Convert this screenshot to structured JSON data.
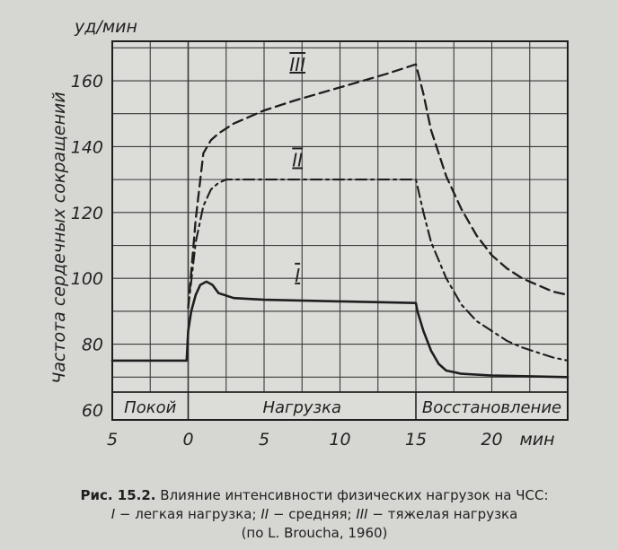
{
  "chart_data": {
    "type": "line",
    "xlabel": "мин",
    "ylabel": "Частота сердечных сокращений",
    "y_unit": "уд/мин",
    "xlim": [
      -5,
      25
    ],
    "ylim": [
      57,
      172
    ],
    "x_ticks": [
      -5,
      0,
      5,
      10,
      15,
      20
    ],
    "x_tick_labels": [
      "5",
      "0",
      "5",
      "10",
      "15",
      "20"
    ],
    "y_ticks": [
      60,
      80,
      100,
      120,
      140,
      160
    ],
    "grid": true,
    "phases": [
      {
        "label": "Покой",
        "from": -5,
        "to": 0
      },
      {
        "label": "Нагрузка",
        "from": 0,
        "to": 15
      },
      {
        "label": "Восстановление",
        "from": 15,
        "to": 25
      }
    ],
    "series": [
      {
        "name": "I",
        "style": "solid",
        "x": [
          -5,
          -0.1,
          0,
          0.2,
          0.5,
          0.8,
          1.2,
          1.6,
          2,
          3,
          5,
          10,
          15,
          15.1,
          15.5,
          16,
          16.5,
          17,
          18,
          20,
          25
        ],
        "y": [
          75,
          75,
          84,
          90,
          95,
          98,
          99,
          98,
          95.5,
          94,
          93.5,
          93,
          92.5,
          90,
          84,
          78,
          74,
          72,
          71,
          70.5,
          70
        ]
      },
      {
        "name": "II",
        "style": "dash-dot",
        "x": [
          0,
          0.5,
          1,
          1.5,
          2,
          2.5,
          3,
          5,
          10,
          15,
          15.5,
          16,
          17,
          18,
          19,
          20,
          21,
          22,
          23,
          24,
          25
        ],
        "y": [
          91,
          111,
          122,
          127,
          129,
          130,
          130,
          130,
          130,
          130,
          120,
          111,
          100,
          92,
          87,
          84,
          81,
          79,
          77.5,
          76,
          75
        ]
      },
      {
        "name": "III",
        "style": "dashed",
        "x": [
          0,
          0.5,
          1,
          1.5,
          2,
          3,
          5,
          7,
          10,
          13,
          15,
          15.5,
          16,
          17,
          18,
          19,
          20,
          21,
          22,
          23,
          24,
          25
        ],
        "y": [
          91,
          118,
          138,
          142,
          144,
          147,
          151,
          154,
          158,
          162,
          165,
          156,
          145,
          131,
          121,
          113,
          107,
          103,
          100,
          98,
          96,
          95
        ]
      }
    ]
  },
  "caption": {
    "prefix": "Рис. 15.2.",
    "line1": " Влияние интенсивности физических нагрузок на ЧСС:",
    "s1": "I",
    "s1_text": " − легкая нагрузка; ",
    "s2": "II",
    "s2_text": " − средняя; ",
    "s3": "III",
    "s3_text": " − тяжелая нагрузка",
    "line3": "(по L. Broucha, 1960)"
  }
}
